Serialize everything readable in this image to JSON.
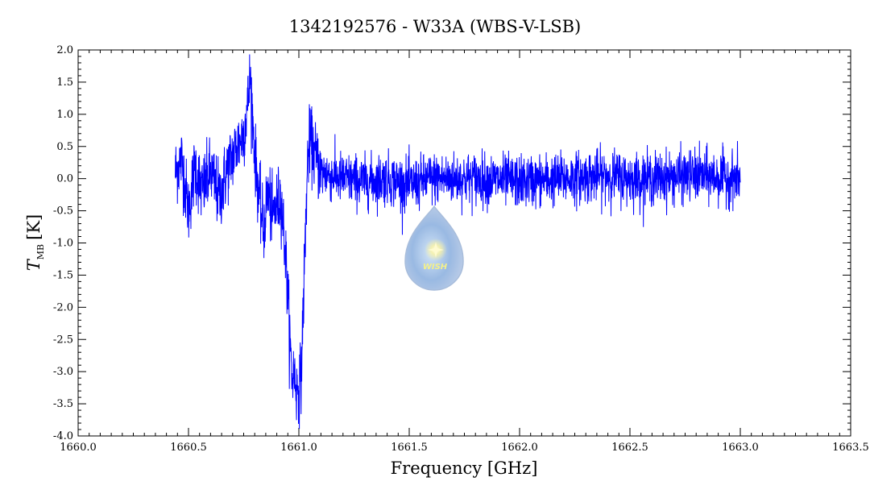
{
  "chart_data": {
    "type": "line",
    "title": "1342192576 - W33A (WBS-V-LSB)",
    "xlabel": "Frequency [GHz]",
    "ylabel": {
      "symbol": "T",
      "subscript": "MB",
      "unit": "[K]"
    },
    "xlim": [
      1660.0,
      1663.5
    ],
    "ylim": [
      -4.0,
      2.0
    ],
    "x_ticks": [
      "1660.0",
      "1660.5",
      "1661.0",
      "1661.5",
      "1662.0",
      "1662.5",
      "1663.0",
      "1663.5"
    ],
    "y_ticks": [
      "2.0",
      "1.5",
      "1.0",
      "0.5",
      "0.0",
      "-0.5",
      "-1.0",
      "-1.5",
      "-2.0",
      "-2.5",
      "-3.0",
      "-3.5",
      "-4.0"
    ],
    "grid": false,
    "line_color": "#0000ff",
    "series": [
      {
        "x": [
          1660.44,
          1660.47,
          1660.5,
          1660.53,
          1660.56,
          1660.6,
          1660.64,
          1660.68,
          1660.72,
          1660.75,
          1660.77,
          1660.78,
          1660.79,
          1660.8,
          1660.82,
          1660.84,
          1660.86,
          1660.88,
          1660.9,
          1660.92,
          1660.94,
          1660.95,
          1660.96,
          1660.97,
          1660.98,
          1660.99,
          1661.0,
          1661.01,
          1661.02,
          1661.03,
          1661.04,
          1661.05,
          1661.06,
          1661.08,
          1661.1,
          1661.15,
          1661.2,
          1661.3,
          1661.4,
          1661.5,
          1661.6,
          1661.8,
          1662.0,
          1662.2,
          1662.4,
          1662.5,
          1662.6,
          1662.8,
          1663.0
        ],
        "y": [
          0.1,
          0.3,
          -0.5,
          0.2,
          -0.2,
          0.1,
          -0.3,
          0.2,
          0.5,
          0.7,
          1.2,
          1.6,
          1.0,
          0.4,
          -0.3,
          -0.8,
          -0.2,
          -0.6,
          -0.4,
          -0.3,
          -1.2,
          -1.8,
          -2.6,
          -3.1,
          -3.0,
          -3.3,
          -3.2,
          -3.1,
          -2.0,
          -0.8,
          0.3,
          0.6,
          0.5,
          0.3,
          0.1,
          0.05,
          0.0,
          -0.05,
          0.0,
          -0.1,
          0.0,
          0.0,
          -0.05,
          0.0,
          0.05,
          0.0,
          0.0,
          0.05,
          0.0
        ],
        "noise_rms": 0.2
      }
    ],
    "logo": {
      "text": "WISH"
    }
  }
}
